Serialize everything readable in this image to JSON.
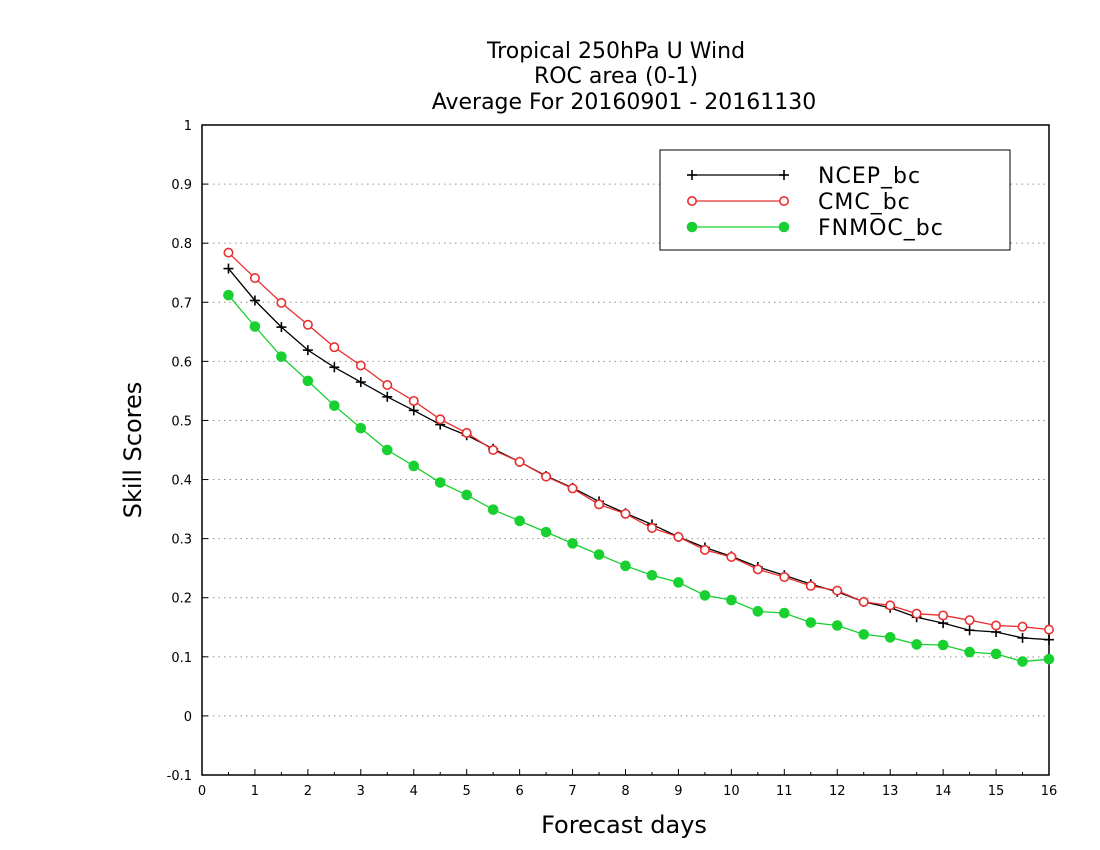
{
  "chart_data": {
    "type": "line",
    "title": [
      "Tropical 250hPa U Wind",
      "ROC area (0-1)",
      "Average For 20160901 - 20161130"
    ],
    "xlabel": "Forecast days",
    "ylabel": "Skill Scores",
    "xlim": [
      0,
      16
    ],
    "ylim": [
      -0.1,
      1
    ],
    "xticks": [
      0,
      1,
      2,
      3,
      4,
      5,
      6,
      7,
      8,
      9,
      10,
      11,
      12,
      13,
      14,
      15,
      16
    ],
    "yticks": [
      -0.1,
      0,
      0.1,
      0.2,
      0.3,
      0.4,
      0.5,
      0.6,
      0.7,
      0.8,
      0.9,
      1
    ],
    "ytick_labels": [
      "-0.1",
      "0",
      "0.1",
      "0.2",
      "0.3",
      "0.4",
      "0.5",
      "0.6",
      "0.7",
      "0.8",
      "0.9",
      "1"
    ],
    "grid": "horizontal dotted",
    "legend_position": "top-right",
    "x": [
      0.5,
      1,
      1.5,
      2,
      2.5,
      3,
      3.5,
      4,
      4.5,
      5,
      5.5,
      6,
      6.5,
      7,
      7.5,
      8,
      8.5,
      9,
      9.5,
      10,
      10.5,
      11,
      11.5,
      12,
      12.5,
      13,
      13.5,
      14,
      14.5,
      15,
      15.5,
      16
    ],
    "series": [
      {
        "name": "NCEP_bc",
        "color": "#000000",
        "marker": "plus",
        "values": [
          0.757,
          0.703,
          0.658,
          0.619,
          0.59,
          0.565,
          0.54,
          0.517,
          0.493,
          0.475,
          0.452,
          0.43,
          0.406,
          0.386,
          0.363,
          0.343,
          0.324,
          0.303,
          0.285,
          0.27,
          0.252,
          0.238,
          0.223,
          0.21,
          0.193,
          0.183,
          0.167,
          0.157,
          0.145,
          0.142,
          0.132,
          0.129
        ]
      },
      {
        "name": "CMC_bc",
        "color": "#e83030",
        "marker": "open-circle",
        "values": [
          0.784,
          0.741,
          0.699,
          0.662,
          0.624,
          0.593,
          0.56,
          0.533,
          0.502,
          0.479,
          0.45,
          0.43,
          0.405,
          0.385,
          0.358,
          0.342,
          0.318,
          0.303,
          0.281,
          0.269,
          0.248,
          0.235,
          0.22,
          0.212,
          0.193,
          0.187,
          0.173,
          0.17,
          0.162,
          0.153,
          0.151,
          0.146
        ]
      },
      {
        "name": "FNMOC_bc",
        "color": "#18d030",
        "marker": "filled-circle",
        "values": [
          0.712,
          0.659,
          0.608,
          0.567,
          0.525,
          0.487,
          0.45,
          0.423,
          0.395,
          0.374,
          0.349,
          0.33,
          0.311,
          0.292,
          0.273,
          0.254,
          0.238,
          0.226,
          0.204,
          0.196,
          0.177,
          0.174,
          0.158,
          0.153,
          0.138,
          0.133,
          0.121,
          0.12,
          0.108,
          0.105,
          0.092,
          0.096
        ]
      }
    ]
  }
}
